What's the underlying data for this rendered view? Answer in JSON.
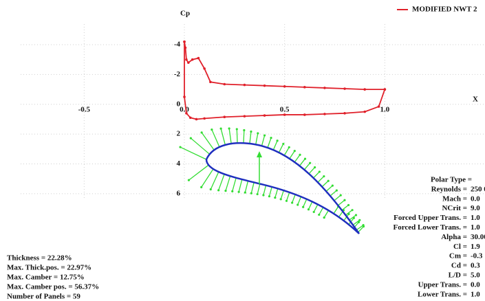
{
  "chart_data": {
    "type": "line",
    "title": "Cp",
    "xlabel": "X",
    "xlim": [
      -0.92,
      1.5
    ],
    "ylim": [
      -7,
      13.2
    ],
    "y_inverted": true,
    "xticks": [
      -0.5,
      {
        "value": 0,
        "label": "0.0"
      },
      0.5,
      {
        "value": 1,
        "label": "1.0"
      }
    ],
    "yticks": [
      -4,
      -2,
      0,
      2,
      4,
      6
    ],
    "grid": true,
    "legend": "top-right",
    "series": [
      {
        "name": "MODIFIED NWT 2",
        "color": "#e0202a",
        "x": [
          0,
          0.005,
          0.01,
          0.02,
          0.04,
          0.07,
          0.1,
          0.13,
          0.2,
          0.3,
          0.4,
          0.5,
          0.6,
          0.7,
          0.8,
          0.9,
          1.0
        ],
        "values": [
          -4.2,
          -3.8,
          -3.0,
          -2.8,
          -3.0,
          -3.1,
          -2.4,
          -1.5,
          -1.35,
          -1.3,
          -1.25,
          -1.2,
          -1.15,
          -1.1,
          -1.05,
          -1.0,
          -1.0
        ]
      },
      {
        "color": "#e0202a",
        "x": [
          0,
          0,
          0.01,
          0.03,
          0.06,
          0.1,
          0.2,
          0.3,
          0.4,
          0.5,
          0.6,
          0.7,
          0.8,
          0.9,
          0.97,
          1.0
        ],
        "values": [
          -4.2,
          -0.5,
          0.6,
          0.9,
          1.0,
          0.95,
          0.85,
          0.8,
          0.75,
          0.7,
          0.7,
          0.65,
          0.6,
          0.5,
          0.15,
          -1.0
        ]
      }
    ]
  },
  "info": [
    "Thickness      = 22.28%",
    "Max. Thick.pos.  = 22.97%",
    "Max. Camber      = 12.75%",
    "Max. Camber pos.  = 56.37%",
    "Number of Panels  = 59"
  ],
  "polar": {
    "labels": [
      "Polar Type =",
      "Reynolds =",
      "Mach =",
      "NCrit =",
      "Forced Upper Trans. =",
      "Forced Lower Trans. =",
      "Alpha =",
      "Cl =",
      "Cm =",
      "Cd =",
      "L/D =",
      "Upper Trans. =",
      "Lower Trans. ="
    ],
    "values": [
      null,
      "250 0",
      "0.0",
      "9.0",
      "1.0",
      "1.0",
      "30.00",
      "1.9",
      "-0.3",
      "0.3",
      "5.0",
      "0.0",
      "1.0"
    ]
  }
}
